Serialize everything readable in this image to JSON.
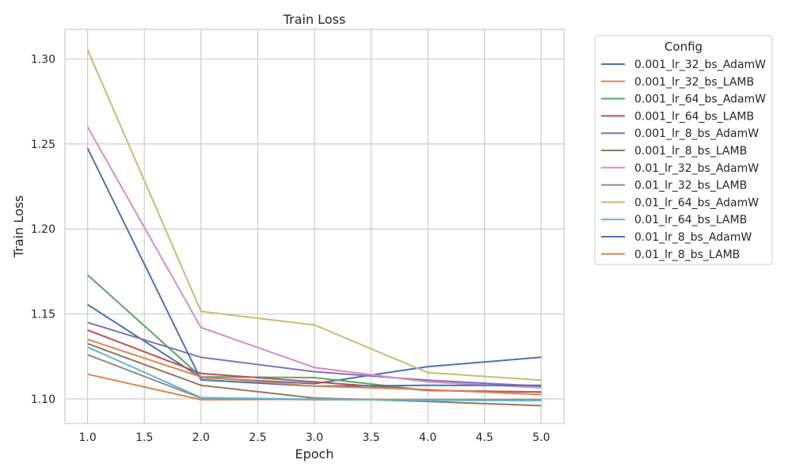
{
  "chart_data": {
    "type": "line",
    "title": "Train Loss",
    "xlabel": "Epoch",
    "ylabel": "Train Loss",
    "xlim": [
      0.8,
      5.2
    ],
    "ylim": [
      1.0855,
      1.3175
    ],
    "x_ticks": [
      "1.0",
      "1.5",
      "2.0",
      "2.5",
      "3.0",
      "3.5",
      "4.0",
      "4.5",
      "5.0"
    ],
    "y_ticks": [
      "1.10",
      "1.15",
      "1.20",
      "1.25",
      "1.30"
    ],
    "grid": true,
    "legend": {
      "title": "Config",
      "placement": "outside-right"
    },
    "x": [
      1,
      2,
      3,
      4,
      5
    ],
    "series": [
      {
        "name": "0.001_lr_32_bs_AdamW",
        "color": "#4c72b0",
        "values": [
          1.1555,
          1.1125,
          1.109,
          1.119,
          1.1245
        ]
      },
      {
        "name": "0.001_lr_32_bs_LAMB",
        "color": "#dd8452",
        "values": [
          1.1145,
          1.0995,
          1.0998,
          1.0995,
          1.0995
        ]
      },
      {
        "name": "0.001_lr_64_bs_AdamW",
        "color": "#55a868",
        "values": [
          1.173,
          1.113,
          1.1125,
          1.105,
          1.104
        ]
      },
      {
        "name": "0.001_lr_64_bs_LAMB",
        "color": "#c44e52",
        "values": [
          1.1405,
          1.115,
          1.11,
          1.105,
          1.104
        ]
      },
      {
        "name": "0.001_lr_8_bs_AdamW",
        "color": "#8172b3",
        "values": [
          1.145,
          1.1245,
          1.116,
          1.111,
          1.1075
        ]
      },
      {
        "name": "0.001_lr_8_bs_LAMB",
        "color": "#937860",
        "values": [
          1.1325,
          1.108,
          1.1005,
          1.0985,
          1.096
        ]
      },
      {
        "name": "0.01_lr_32_bs_AdamW",
        "color": "#da8bc3",
        "values": [
          1.26,
          1.142,
          1.1185,
          1.11,
          1.1065
        ]
      },
      {
        "name": "0.01_lr_32_bs_LAMB",
        "color": "#8c8c8c",
        "values": [
          1.126,
          1.1005,
          1.0995,
          1.0995,
          1.0995
        ]
      },
      {
        "name": "0.01_lr_64_bs_AdamW",
        "color": "#ccb974",
        "values": [
          1.3055,
          1.1515,
          1.1435,
          1.1155,
          1.111
        ]
      },
      {
        "name": "0.01_lr_64_bs_LAMB",
        "color": "#64b5cd",
        "values": [
          1.1305,
          1.1008,
          1.0998,
          1.0992,
          1.099
        ]
      },
      {
        "name": "0.01_lr_8_bs_AdamW",
        "color": "#4c72b0",
        "values": [
          1.2475,
          1.1112,
          1.1075,
          1.108,
          1.108
        ]
      },
      {
        "name": "0.01_lr_8_bs_LAMB",
        "color": "#dd8452",
        "values": [
          1.135,
          1.113,
          1.1075,
          1.1055,
          1.1025
        ]
      }
    ]
  }
}
